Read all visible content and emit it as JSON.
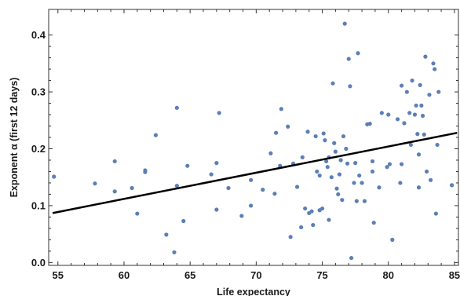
{
  "chart_data": {
    "type": "scatter",
    "xlabel": "Life expectancy",
    "ylabel": "Exponent α (first 12 days)",
    "xlim": [
      54.3,
      85.3
    ],
    "ylim": [
      -0.005,
      0.445
    ],
    "x_ticks": [
      55,
      60,
      65,
      70,
      75,
      80,
      85
    ],
    "y_ticks": [
      0.0,
      0.1,
      0.2,
      0.3,
      0.4
    ],
    "y_tick_labels": [
      "0.0",
      "0.1",
      "0.2",
      "0.3",
      "0.4"
    ],
    "grid": false,
    "point_color": "#5c7fb5",
    "line_color": "#000000",
    "fit_line": {
      "x": [
        54.6,
        85.2
      ],
      "y": [
        0.087,
        0.228
      ]
    },
    "points": [
      {
        "x": 54.7,
        "y": 0.151
      },
      {
        "x": 57.8,
        "y": 0.139
      },
      {
        "x": 59.3,
        "y": 0.178
      },
      {
        "x": 59.3,
        "y": 0.125
      },
      {
        "x": 60.6,
        "y": 0.131
      },
      {
        "x": 61.0,
        "y": 0.086
      },
      {
        "x": 61.6,
        "y": 0.159
      },
      {
        "x": 61.6,
        "y": 0.162
      },
      {
        "x": 62.4,
        "y": 0.224
      },
      {
        "x": 63.2,
        "y": 0.049
      },
      {
        "x": 63.8,
        "y": 0.018
      },
      {
        "x": 64.0,
        "y": 0.272
      },
      {
        "x": 64.0,
        "y": 0.135
      },
      {
        "x": 64.5,
        "y": 0.073
      },
      {
        "x": 64.8,
        "y": 0.17
      },
      {
        "x": 66.6,
        "y": 0.155
      },
      {
        "x": 67.0,
        "y": 0.175
      },
      {
        "x": 67.0,
        "y": 0.093
      },
      {
        "x": 67.2,
        "y": 0.263
      },
      {
        "x": 67.9,
        "y": 0.131
      },
      {
        "x": 68.9,
        "y": 0.082
      },
      {
        "x": 69.6,
        "y": 0.145
      },
      {
        "x": 69.6,
        "y": 0.1
      },
      {
        "x": 70.5,
        "y": 0.128
      },
      {
        "x": 71.1,
        "y": 0.192
      },
      {
        "x": 71.4,
        "y": 0.121
      },
      {
        "x": 71.5,
        "y": 0.228
      },
      {
        "x": 71.9,
        "y": 0.27
      },
      {
        "x": 71.8,
        "y": 0.17
      },
      {
        "x": 72.4,
        "y": 0.239
      },
      {
        "x": 72.6,
        "y": 0.045
      },
      {
        "x": 72.8,
        "y": 0.174
      },
      {
        "x": 73.1,
        "y": 0.133
      },
      {
        "x": 73.4,
        "y": 0.062
      },
      {
        "x": 73.5,
        "y": 0.185
      },
      {
        "x": 73.7,
        "y": 0.095
      },
      {
        "x": 73.9,
        "y": 0.23
      },
      {
        "x": 74.0,
        "y": 0.087
      },
      {
        "x": 74.2,
        "y": 0.09
      },
      {
        "x": 74.3,
        "y": 0.066
      },
      {
        "x": 74.5,
        "y": 0.222
      },
      {
        "x": 74.6,
        "y": 0.16
      },
      {
        "x": 74.8,
        "y": 0.153
      },
      {
        "x": 74.8,
        "y": 0.092
      },
      {
        "x": 75.0,
        "y": 0.095
      },
      {
        "x": 75.1,
        "y": 0.227
      },
      {
        "x": 75.2,
        "y": 0.215
      },
      {
        "x": 75.3,
        "y": 0.178
      },
      {
        "x": 75.4,
        "y": 0.168
      },
      {
        "x": 75.5,
        "y": 0.185
      },
      {
        "x": 75.5,
        "y": 0.075
      },
      {
        "x": 75.7,
        "y": 0.15
      },
      {
        "x": 75.8,
        "y": 0.315
      },
      {
        "x": 75.9,
        "y": 0.21
      },
      {
        "x": 76.0,
        "y": 0.195
      },
      {
        "x": 76.1,
        "y": 0.13
      },
      {
        "x": 76.2,
        "y": 0.12
      },
      {
        "x": 76.3,
        "y": 0.155
      },
      {
        "x": 76.4,
        "y": 0.18
      },
      {
        "x": 76.5,
        "y": 0.11
      },
      {
        "x": 76.6,
        "y": 0.222
      },
      {
        "x": 76.7,
        "y": 0.42
      },
      {
        "x": 76.8,
        "y": 0.2
      },
      {
        "x": 76.9,
        "y": 0.174
      },
      {
        "x": 77.0,
        "y": 0.358
      },
      {
        "x": 77.1,
        "y": 0.31
      },
      {
        "x": 77.2,
        "y": 0.008
      },
      {
        "x": 77.4,
        "y": 0.14
      },
      {
        "x": 77.5,
        "y": 0.175
      },
      {
        "x": 77.6,
        "y": 0.108
      },
      {
        "x": 77.7,
        "y": 0.368
      },
      {
        "x": 77.8,
        "y": 0.153
      },
      {
        "x": 78.0,
        "y": 0.14
      },
      {
        "x": 78.2,
        "y": 0.108
      },
      {
        "x": 78.4,
        "y": 0.243
      },
      {
        "x": 78.6,
        "y": 0.244
      },
      {
        "x": 78.8,
        "y": 0.178
      },
      {
        "x": 78.8,
        "y": 0.16
      },
      {
        "x": 78.9,
        "y": 0.07
      },
      {
        "x": 79.3,
        "y": 0.132
      },
      {
        "x": 79.5,
        "y": 0.263
      },
      {
        "x": 79.9,
        "y": 0.168
      },
      {
        "x": 80.0,
        "y": 0.26
      },
      {
        "x": 80.1,
        "y": 0.173
      },
      {
        "x": 80.3,
        "y": 0.04
      },
      {
        "x": 80.7,
        "y": 0.252
      },
      {
        "x": 80.9,
        "y": 0.14
      },
      {
        "x": 81.0,
        "y": 0.311
      },
      {
        "x": 81.0,
        "y": 0.173
      },
      {
        "x": 81.2,
        "y": 0.245
      },
      {
        "x": 81.4,
        "y": 0.3
      },
      {
        "x": 81.6,
        "y": 0.263
      },
      {
        "x": 81.7,
        "y": 0.207
      },
      {
        "x": 81.8,
        "y": 0.32
      },
      {
        "x": 82.0,
        "y": 0.26
      },
      {
        "x": 82.1,
        "y": 0.276
      },
      {
        "x": 82.2,
        "y": 0.226
      },
      {
        "x": 82.3,
        "y": 0.19
      },
      {
        "x": 82.3,
        "y": 0.132
      },
      {
        "x": 82.4,
        "y": 0.312
      },
      {
        "x": 82.5,
        "y": 0.276
      },
      {
        "x": 82.6,
        "y": 0.258
      },
      {
        "x": 82.7,
        "y": 0.225
      },
      {
        "x": 82.8,
        "y": 0.362
      },
      {
        "x": 82.9,
        "y": 0.16
      },
      {
        "x": 83.1,
        "y": 0.295
      },
      {
        "x": 83.2,
        "y": 0.145
      },
      {
        "x": 83.4,
        "y": 0.35
      },
      {
        "x": 83.5,
        "y": 0.34
      },
      {
        "x": 83.6,
        "y": 0.086
      },
      {
        "x": 83.7,
        "y": 0.207
      },
      {
        "x": 83.8,
        "y": 0.3
      },
      {
        "x": 84.8,
        "y": 0.136
      }
    ]
  }
}
